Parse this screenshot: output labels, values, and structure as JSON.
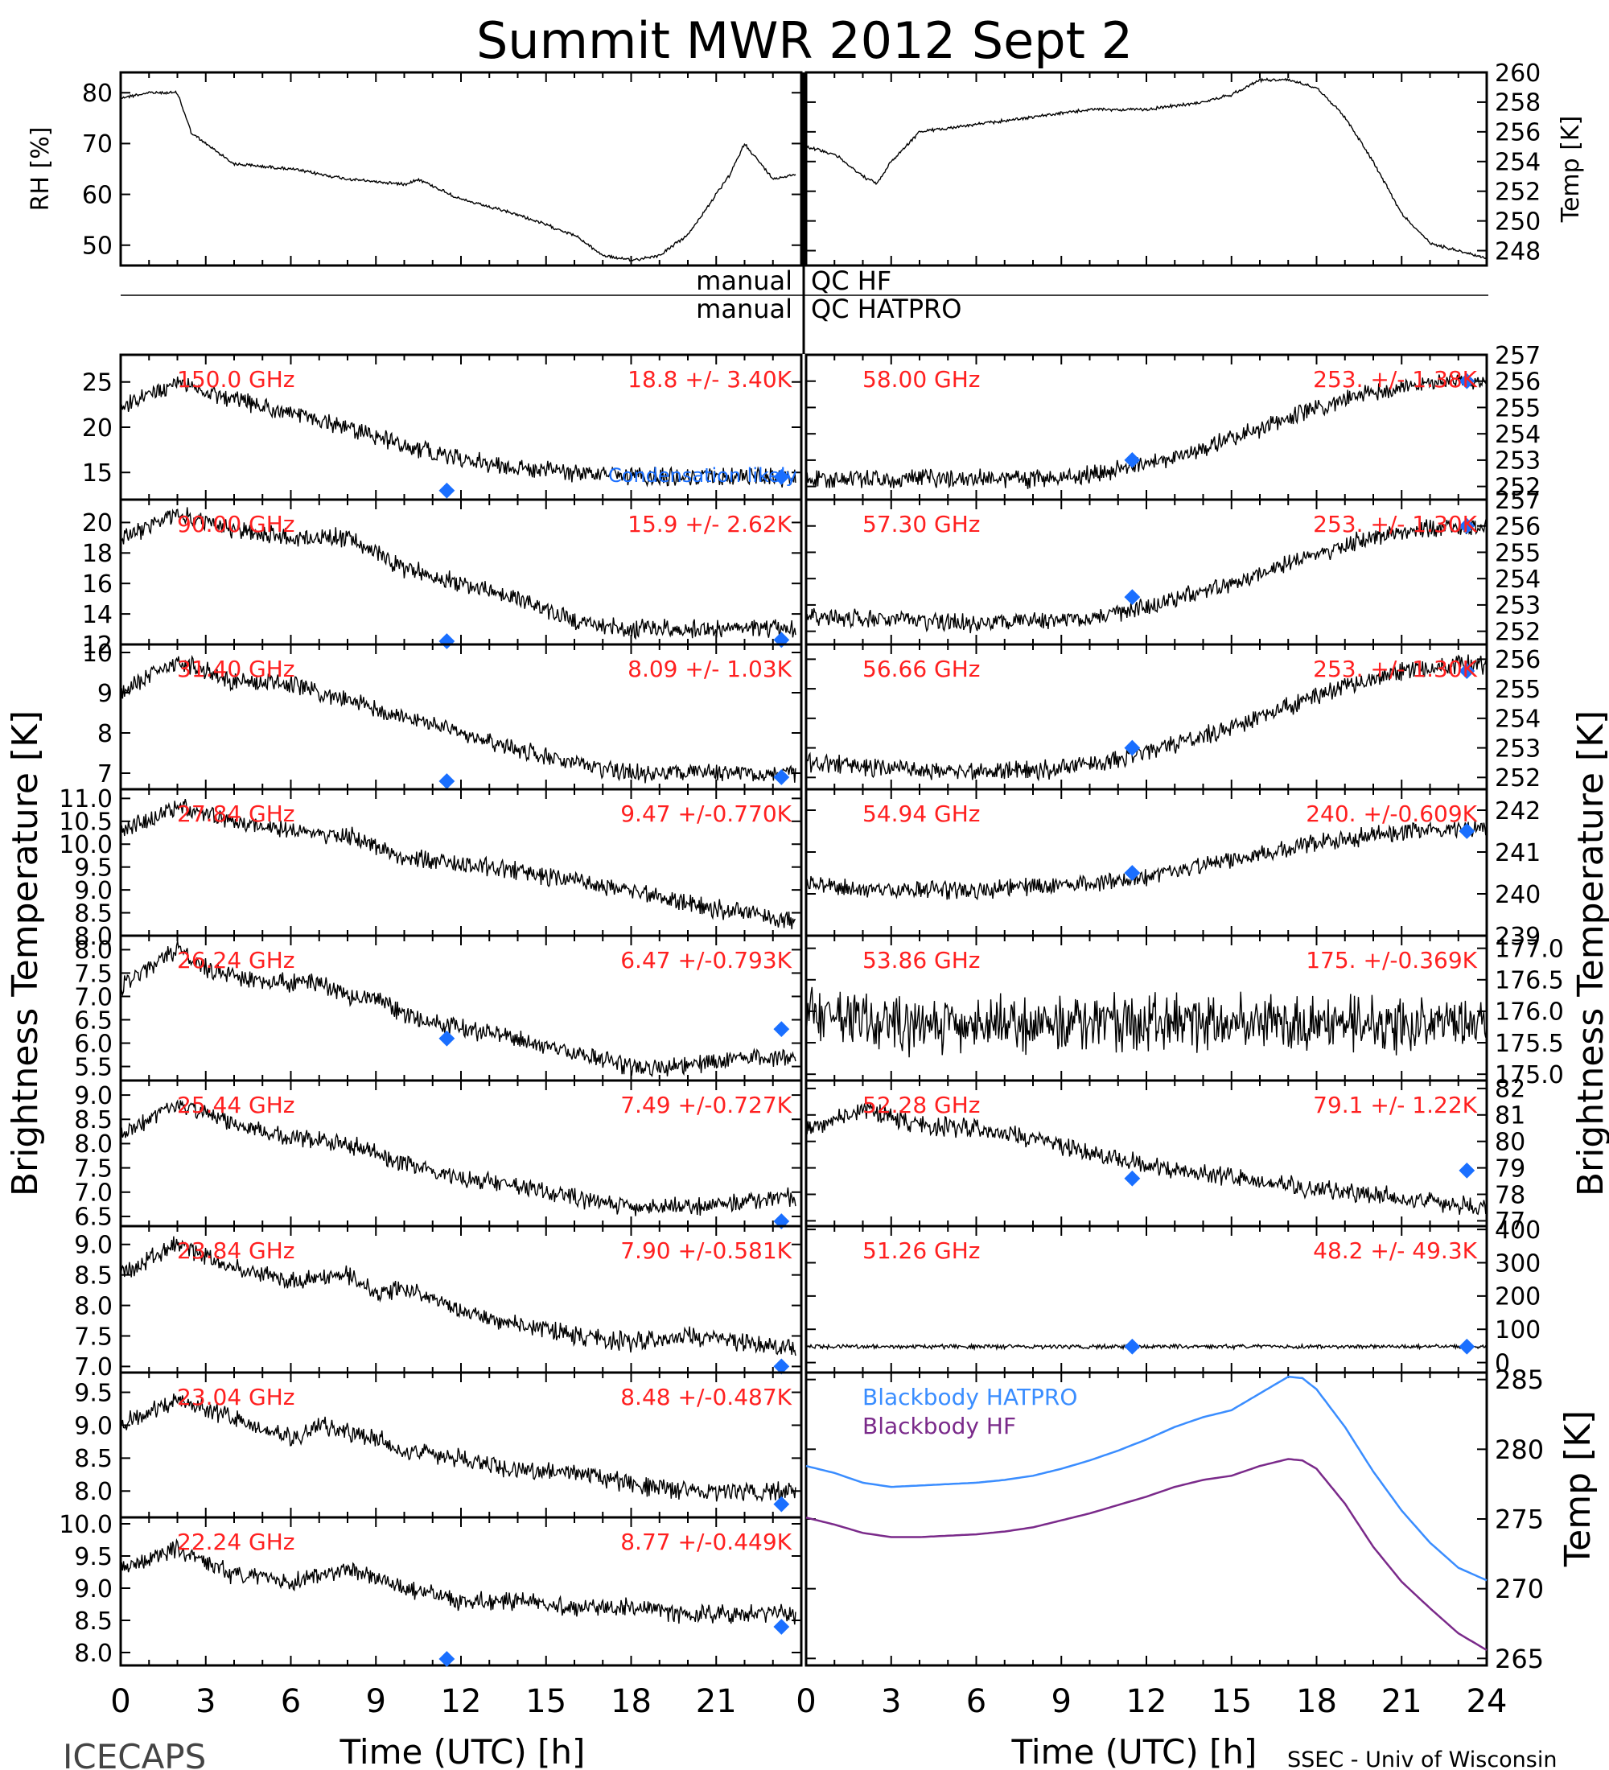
{
  "title": "Summit MWR 2012 Sept  2",
  "footer_left": "ICECAPS",
  "footer_right": "SSEC - Univ of Wisconsin",
  "ylabel_left": "Brightness Temperature [K]",
  "ylabel_right": "Brightness Temperature [K]",
  "colors": {
    "data": "#000000",
    "annotation": "#ff2020",
    "marker": "#1a6fff",
    "blackbody_hatpro": "#3a8dff",
    "blackbody_hf": "#7a2a8a"
  },
  "qc": {
    "hf_left": "manual",
    "hf_right": "QC HF",
    "hatpro_left": "manual",
    "hatpro_right": "QC HATPRO"
  },
  "xaxis": {
    "label": "Time (UTC) [h]",
    "ticks_left": [
      "0",
      "3",
      "6",
      "9",
      "12",
      "15",
      "18",
      "21"
    ],
    "ticks_right": [
      "0",
      "3",
      "6",
      "9",
      "12",
      "15",
      "18",
      "21",
      "24"
    ]
  },
  "chart_data": [
    {
      "id": "rh",
      "type": "line",
      "ylabel": "RH [%]",
      "x": [
        0,
        1,
        2,
        2.5,
        3,
        4,
        6,
        8,
        10,
        10.5,
        12,
        14,
        16,
        17,
        18,
        19,
        20,
        21,
        21.5,
        22,
        23,
        23.8
      ],
      "y": [
        79,
        80,
        80,
        72,
        70,
        66,
        65,
        63,
        62,
        63,
        59,
        56,
        52,
        48,
        47,
        48,
        52,
        60,
        64,
        70,
        63,
        64
      ],
      "ylim": [
        46,
        84
      ],
      "yticks": [
        "80",
        "70",
        "60",
        "50"
      ]
    },
    {
      "id": "temp",
      "type": "line",
      "ylabel": "Temp [K]",
      "x": [
        0,
        1,
        2,
        2.5,
        3,
        4,
        6,
        8,
        10,
        12,
        14,
        15,
        16,
        17,
        18,
        19,
        20,
        21,
        22,
        23,
        24
      ],
      "y": [
        255,
        254.5,
        253,
        252.5,
        254,
        256,
        256.5,
        257,
        257.5,
        257.5,
        258,
        258.5,
        259.5,
        259.5,
        259,
        257,
        254,
        250.5,
        248.5,
        248,
        247.5
      ],
      "ylim": [
        247,
        260
      ],
      "yticks": [
        "260",
        "258",
        "256",
        "254",
        "252",
        "250",
        "248"
      ]
    },
    {
      "id": "ch150",
      "type": "line",
      "freq": "150.0 GHz",
      "stats": "18.8 +/-  3.40K",
      "note": "Condensation likely",
      "x": [
        0,
        2,
        4,
        6,
        8,
        10,
        12,
        14,
        16,
        18,
        20,
        22,
        23.8
      ],
      "y": [
        22,
        25,
        23,
        21.5,
        20,
        18,
        16.5,
        15.5,
        15,
        14.5,
        14.5,
        14.5,
        14.5
      ],
      "markers": [
        [
          11.5,
          13
        ],
        [
          23.3,
          14.5
        ]
      ],
      "ylim": [
        12,
        28
      ],
      "yticks": [
        "25",
        "20",
        "15"
      ]
    },
    {
      "id": "ch90",
      "type": "line",
      "freq": "90.00 GHz",
      "stats": "15.9 +/-  2.62K",
      "x": [
        0,
        2,
        4,
        6,
        8,
        9,
        10,
        12,
        14,
        16,
        18,
        20,
        22,
        23.8
      ],
      "y": [
        19,
        20.5,
        19.5,
        19,
        19,
        18,
        17,
        16,
        15,
        13.5,
        13,
        13,
        13,
        13
      ],
      "markers": [
        [
          11.5,
          12
        ],
        [
          23.3,
          12.3
        ]
      ],
      "ylim": [
        12,
        21.5
      ],
      "yticks": [
        "20",
        "18",
        "16",
        "14",
        "12"
      ]
    },
    {
      "id": "ch3140",
      "type": "line",
      "freq": "31.40 GHz",
      "stats": "8.09 +/- 1.03K",
      "x": [
        0,
        2,
        4,
        6,
        8,
        10,
        12,
        14,
        16,
        18,
        20,
        22,
        23.8
      ],
      "y": [
        9,
        9.8,
        9.3,
        9.2,
        8.8,
        8.4,
        8,
        7.6,
        7.2,
        7,
        7,
        7,
        7
      ],
      "markers": [
        [
          11.5,
          6.8
        ],
        [
          23.3,
          6.9
        ]
      ],
      "ylim": [
        6.6,
        10.2
      ],
      "yticks": [
        "10",
        "9",
        "8",
        "7"
      ]
    },
    {
      "id": "ch2784",
      "type": "line",
      "freq": "27.84 GHz",
      "stats": "9.47 +/-0.770K",
      "x": [
        0,
        2,
        4,
        6,
        8,
        10,
        12,
        14,
        16,
        18,
        20,
        22,
        23.8
      ],
      "y": [
        10.3,
        10.8,
        10.5,
        10.3,
        10.2,
        9.7,
        9.6,
        9.4,
        9.2,
        9,
        8.7,
        8.5,
        8.3
      ],
      "markers": [],
      "ylim": [
        8,
        11.2
      ],
      "yticks": [
        "11.0",
        "10.5",
        "10.0",
        "9.5",
        "9.0",
        "8.5",
        "8.0"
      ]
    },
    {
      "id": "ch2624",
      "type": "line",
      "freq": "26.24 GHz",
      "stats": "6.47 +/-0.793K",
      "x": [
        0,
        1.5,
        2,
        3,
        5,
        7,
        8,
        9,
        10,
        12,
        14,
        16,
        18,
        20,
        22,
        23.8
      ],
      "y": [
        7.2,
        7.8,
        8,
        7.6,
        7.3,
        7.3,
        7,
        7,
        6.6,
        6.3,
        6.1,
        5.8,
        5.5,
        5.5,
        5.7,
        5.7
      ],
      "markers": [
        [
          11.5,
          6.1
        ],
        [
          23.3,
          6.3
        ]
      ],
      "ylim": [
        5.2,
        8.3
      ],
      "yticks": [
        "8.0",
        "7.5",
        "7.0",
        "6.5",
        "6.0",
        "5.5"
      ]
    },
    {
      "id": "ch2544",
      "type": "line",
      "freq": "25.44 GHz",
      "stats": "7.49 +/-0.727K",
      "x": [
        0,
        2,
        4,
        6,
        8,
        10,
        12,
        14,
        16,
        18,
        20,
        22,
        23.8
      ],
      "y": [
        8.2,
        8.8,
        8.4,
        8.1,
        8,
        7.6,
        7.3,
        7.1,
        6.9,
        6.7,
        6.7,
        6.8,
        6.9
      ],
      "markers": [
        [
          23.3,
          6.4
        ]
      ],
      "ylim": [
        6.3,
        9.3
      ],
      "yticks": [
        "9.0",
        "8.5",
        "8.0",
        "7.5",
        "7.0",
        "6.5"
      ]
    },
    {
      "id": "ch2384",
      "type": "line",
      "freq": "23.84 GHz",
      "stats": "7.90 +/-0.581K",
      "x": [
        0,
        2,
        4,
        6,
        8,
        9,
        10,
        12,
        14,
        16,
        18,
        20,
        22,
        23.8
      ],
      "y": [
        8.5,
        9,
        8.6,
        8.4,
        8.5,
        8.2,
        8.3,
        7.9,
        7.7,
        7.5,
        7.4,
        7.5,
        7.4,
        7.3
      ],
      "markers": [
        [
          23.3,
          7
        ]
      ],
      "ylim": [
        6.9,
        9.3
      ],
      "yticks": [
        "9.0",
        "8.5",
        "8.0",
        "7.5",
        "7.0"
      ]
    },
    {
      "id": "ch2304",
      "type": "line",
      "freq": "23.04 GHz",
      "stats": "8.48 +/-0.487K",
      "x": [
        0,
        2,
        4,
        6,
        7,
        9,
        10,
        12,
        14,
        16,
        18,
        20,
        22,
        23.8
      ],
      "y": [
        9,
        9.4,
        9.1,
        8.8,
        9,
        8.8,
        8.6,
        8.5,
        8.3,
        8.3,
        8.1,
        8,
        8,
        8
      ],
      "markers": [
        [
          23.3,
          7.8
        ]
      ],
      "ylim": [
        7.6,
        9.8
      ],
      "yticks": [
        "9.5",
        "9.0",
        "8.5",
        "8.0"
      ]
    },
    {
      "id": "ch2224",
      "type": "line",
      "freq": "22.24 GHz",
      "stats": "8.77 +/-0.449K",
      "x": [
        0,
        2,
        4,
        6,
        8,
        10,
        12,
        14,
        16,
        18,
        20,
        22,
        23.8
      ],
      "y": [
        9.3,
        9.6,
        9.2,
        9.1,
        9.3,
        9,
        8.8,
        8.8,
        8.7,
        8.7,
        8.6,
        8.6,
        8.6
      ],
      "markers": [
        [
          11.5,
          7.9
        ],
        [
          23.3,
          8.4
        ]
      ],
      "ylim": [
        7.8,
        10.1
      ],
      "yticks": [
        "10.0",
        "9.5",
        "9.0",
        "8.5",
        "8.0"
      ]
    },
    {
      "id": "ch5800",
      "type": "line",
      "freq": "58.00 GHz",
      "stats": "253. +/- 1.38K",
      "x": [
        0,
        3,
        6,
        9,
        11,
        13,
        15,
        17,
        19,
        21,
        23,
        24
      ],
      "y": [
        252.3,
        252.3,
        252.3,
        252.3,
        252.6,
        253.1,
        253.8,
        254.6,
        255.3,
        255.8,
        256,
        256
      ],
      "markers": [
        [
          11.5,
          253
        ],
        [
          23.3,
          256
        ]
      ],
      "ylim": [
        251.5,
        257
      ],
      "yticks": [
        "257",
        "256",
        "255",
        "254",
        "253",
        "252"
      ]
    },
    {
      "id": "ch5730",
      "type": "line",
      "freq": "57.30 GHz",
      "stats": "253. +/- 1.30K",
      "x": [
        0,
        3,
        6,
        9,
        11,
        13,
        15,
        17,
        19,
        21,
        23,
        24
      ],
      "y": [
        252.6,
        252.4,
        252.3,
        252.4,
        252.7,
        253.2,
        253.8,
        254.6,
        255.3,
        255.8,
        256,
        256
      ],
      "markers": [
        [
          11.5,
          253.3
        ],
        [
          23.3,
          256
        ]
      ],
      "ylim": [
        251.5,
        257
      ],
      "yticks": [
        "257",
        "256",
        "255",
        "254",
        "253",
        "252"
      ]
    },
    {
      "id": "ch5666",
      "type": "line",
      "freq": "56.66 GHz",
      "stats": "253. +/- 1.30K",
      "x": [
        0,
        3,
        6,
        9,
        11,
        13,
        15,
        17,
        19,
        21,
        23,
        24
      ],
      "y": [
        252.5,
        252.3,
        252.2,
        252.3,
        252.6,
        253.1,
        253.7,
        254.4,
        255.1,
        255.6,
        255.8,
        255.8
      ],
      "markers": [
        [
          11.5,
          253
        ],
        [
          23.3,
          255.6
        ]
      ],
      "ylim": [
        251.6,
        256.5
      ],
      "yticks": [
        "256",
        "255",
        "254",
        "253",
        "252"
      ]
    },
    {
      "id": "ch5494",
      "type": "line",
      "freq": "54.94 GHz",
      "stats": "240. +/-0.609K",
      "x": [
        0,
        3,
        6,
        9,
        12,
        15,
        18,
        21,
        24
      ],
      "y": [
        240.2,
        240.1,
        240.1,
        240.2,
        240.4,
        240.8,
        241.2,
        241.5,
        241.6
      ],
      "markers": [
        [
          11.5,
          240.5
        ],
        [
          23.3,
          241.5
        ]
      ],
      "ylim": [
        239,
        242.5
      ],
      "yticks": [
        "242",
        "241",
        "240",
        "239"
      ]
    },
    {
      "id": "ch5386",
      "type": "line",
      "freq": "53.86 GHz",
      "stats": "175. +/-0.369K",
      "x": [
        0,
        3,
        6,
        9,
        12,
        15,
        18,
        21,
        24
      ],
      "y": [
        175.9,
        175.8,
        175.8,
        175.8,
        175.8,
        175.8,
        175.8,
        175.8,
        175.8
      ],
      "markers": [],
      "ylim": [
        174.9,
        177.2
      ],
      "yticks": [
        "177.0",
        "176.5",
        "176.0",
        "175.5",
        "175.0"
      ]
    },
    {
      "id": "ch5228",
      "type": "line",
      "freq": "52.28 GHz",
      "stats": "79.1 +/- 1.22K",
      "x": [
        0,
        2,
        4,
        6,
        8,
        10,
        12,
        14,
        16,
        18,
        20,
        22,
        24
      ],
      "y": [
        80.5,
        81.2,
        80.6,
        80.5,
        80.1,
        79.6,
        79.1,
        78.8,
        78.5,
        78.2,
        78,
        77.7,
        77.5
      ],
      "markers": [
        [
          11.5,
          78.6
        ],
        [
          23.3,
          78.9
        ]
      ],
      "ylim": [
        76.8,
        82.3
      ],
      "yticks": [
        "82",
        "81",
        "80",
        "79",
        "78",
        "77"
      ]
    },
    {
      "id": "ch5126",
      "type": "line",
      "freq": "51.26 GHz",
      "stats": "48.2 +/- 49.3K",
      "x": [
        0,
        3,
        6,
        9,
        12,
        15,
        18,
        21,
        24
      ],
      "y": [
        48,
        48,
        48,
        48,
        48,
        48,
        48,
        48,
        48
      ],
      "markers": [
        [
          11.5,
          48
        ],
        [
          23.3,
          48
        ]
      ],
      "ylim": [
        -30,
        410
      ],
      "yticks": [
        "400",
        "300",
        "200",
        "100",
        "0"
      ]
    },
    {
      "id": "blackbody",
      "type": "line",
      "ylabel": "Temp [K]",
      "series": [
        {
          "name": "Blackbody HATPRO",
          "x": [
            0,
            1,
            2,
            3,
            4,
            5,
            6,
            7,
            8,
            9,
            10,
            11,
            12,
            13,
            14,
            15,
            16,
            17,
            17.5,
            18,
            19,
            20,
            21,
            22,
            23,
            24
          ],
          "y": [
            278.8,
            278.3,
            277.6,
            277.3,
            277.4,
            277.5,
            277.6,
            277.8,
            278.1,
            278.6,
            279.2,
            279.9,
            280.7,
            281.6,
            282.3,
            282.8,
            284,
            285.2,
            285.1,
            284.3,
            281.6,
            278.4,
            275.6,
            273.3,
            271.5,
            270.6
          ]
        },
        {
          "name": "Blackbody HF",
          "x": [
            0,
            1,
            2,
            3,
            4,
            5,
            6,
            7,
            8,
            9,
            10,
            11,
            12,
            13,
            14,
            15,
            16,
            17,
            17.5,
            18,
            19,
            20,
            21,
            22,
            23,
            24
          ],
          "y": [
            275.1,
            274.6,
            274,
            273.7,
            273.7,
            273.8,
            273.9,
            274.1,
            274.4,
            274.9,
            275.4,
            276,
            276.6,
            277.3,
            277.8,
            278.1,
            278.8,
            279.3,
            279.2,
            278.6,
            276.1,
            273,
            270.5,
            268.6,
            266.8,
            265.6
          ]
        }
      ],
      "ylim": [
        264.5,
        285.5
      ],
      "yticks": [
        "285",
        "280",
        "275",
        "270",
        "265"
      ]
    }
  ]
}
